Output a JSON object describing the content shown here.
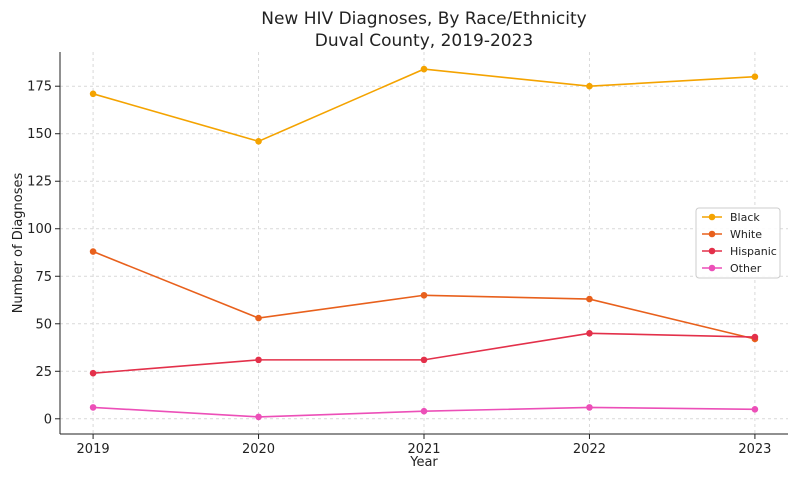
{
  "chart_data": {
    "type": "line",
    "title": "New HIV Diagnoses, By Race/Ethnicity",
    "subtitle": "Duval County, 2019-2023",
    "xlabel": "Year",
    "ylabel": "Number of Diagnoses",
    "x": [
      2019,
      2020,
      2021,
      2022,
      2023
    ],
    "x_tick_labels": [
      "2019",
      "2020",
      "2021",
      "2022",
      "2023"
    ],
    "y_ticks": [
      0,
      25,
      50,
      75,
      100,
      125,
      150,
      175
    ],
    "y_tick_labels": [
      "0",
      "25",
      "50",
      "75",
      "100",
      "125",
      "150",
      "175"
    ],
    "xlim": [
      2018.8,
      2023.2
    ],
    "ylim": [
      -8,
      193
    ],
    "grid": true,
    "legend_position": "right",
    "series": [
      {
        "name": "Black",
        "color": "#f4a300",
        "values": [
          171,
          146,
          184,
          175,
          180
        ]
      },
      {
        "name": "White",
        "color": "#e8601c",
        "values": [
          88,
          53,
          65,
          63,
          42
        ]
      },
      {
        "name": "Hispanic",
        "color": "#e3304a",
        "values": [
          24,
          31,
          31,
          45,
          43
        ]
      },
      {
        "name": "Other",
        "color": "#ec4fb8",
        "values": [
          6,
          1,
          4,
          6,
          5
        ]
      }
    ]
  }
}
